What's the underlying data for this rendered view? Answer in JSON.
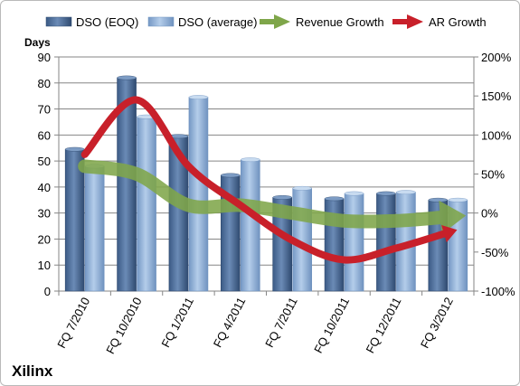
{
  "chart_data": {
    "type": "bar",
    "title": "",
    "brand_label": "Xilinx",
    "ylabel": "Days",
    "ylim": [
      0,
      90
    ],
    "yticks": [
      0,
      10,
      20,
      30,
      40,
      50,
      60,
      70,
      80,
      90
    ],
    "y2lim": [
      -100,
      200
    ],
    "y2ticks": [
      "-100%",
      "-50%",
      "0%",
      "50%",
      "100%",
      "150%",
      "200%"
    ],
    "y2tick_values": [
      -100,
      -50,
      0,
      50,
      100,
      150,
      200
    ],
    "grid": true,
    "legend_position": "top",
    "categories": [
      "FQ 7/2010",
      "FQ 10/2010",
      "FQ 1/2011",
      "FQ 4/2011",
      "FQ 7/2011",
      "FQ 10/2011",
      "FQ 12/2011",
      "FQ 3/2012"
    ],
    "series": [
      {
        "name": "DSO (EOQ)",
        "kind": "bar",
        "axis": "left",
        "color": "#4a6b96",
        "values": [
          54.5,
          82,
          59.5,
          44.5,
          36,
          35.5,
          37.5,
          35
        ]
      },
      {
        "name": "DSO (average)",
        "kind": "bar",
        "axis": "left",
        "color": "#8fb0d7",
        "values": [
          48,
          67,
          74.5,
          50.5,
          39.5,
          37.5,
          38,
          35
        ]
      },
      {
        "name": "Revenue Growth",
        "kind": "line-arrow",
        "axis": "right",
        "color": "#7fa64a",
        "values": [
          60,
          50,
          10,
          10,
          0,
          -10,
          -10,
          -5
        ]
      },
      {
        "name": "AR Growth",
        "kind": "line-arrow",
        "axis": "right",
        "color": "#c8202a",
        "values": [
          75,
          145,
          60,
          10,
          -35,
          -60,
          -45,
          -25
        ]
      }
    ]
  }
}
